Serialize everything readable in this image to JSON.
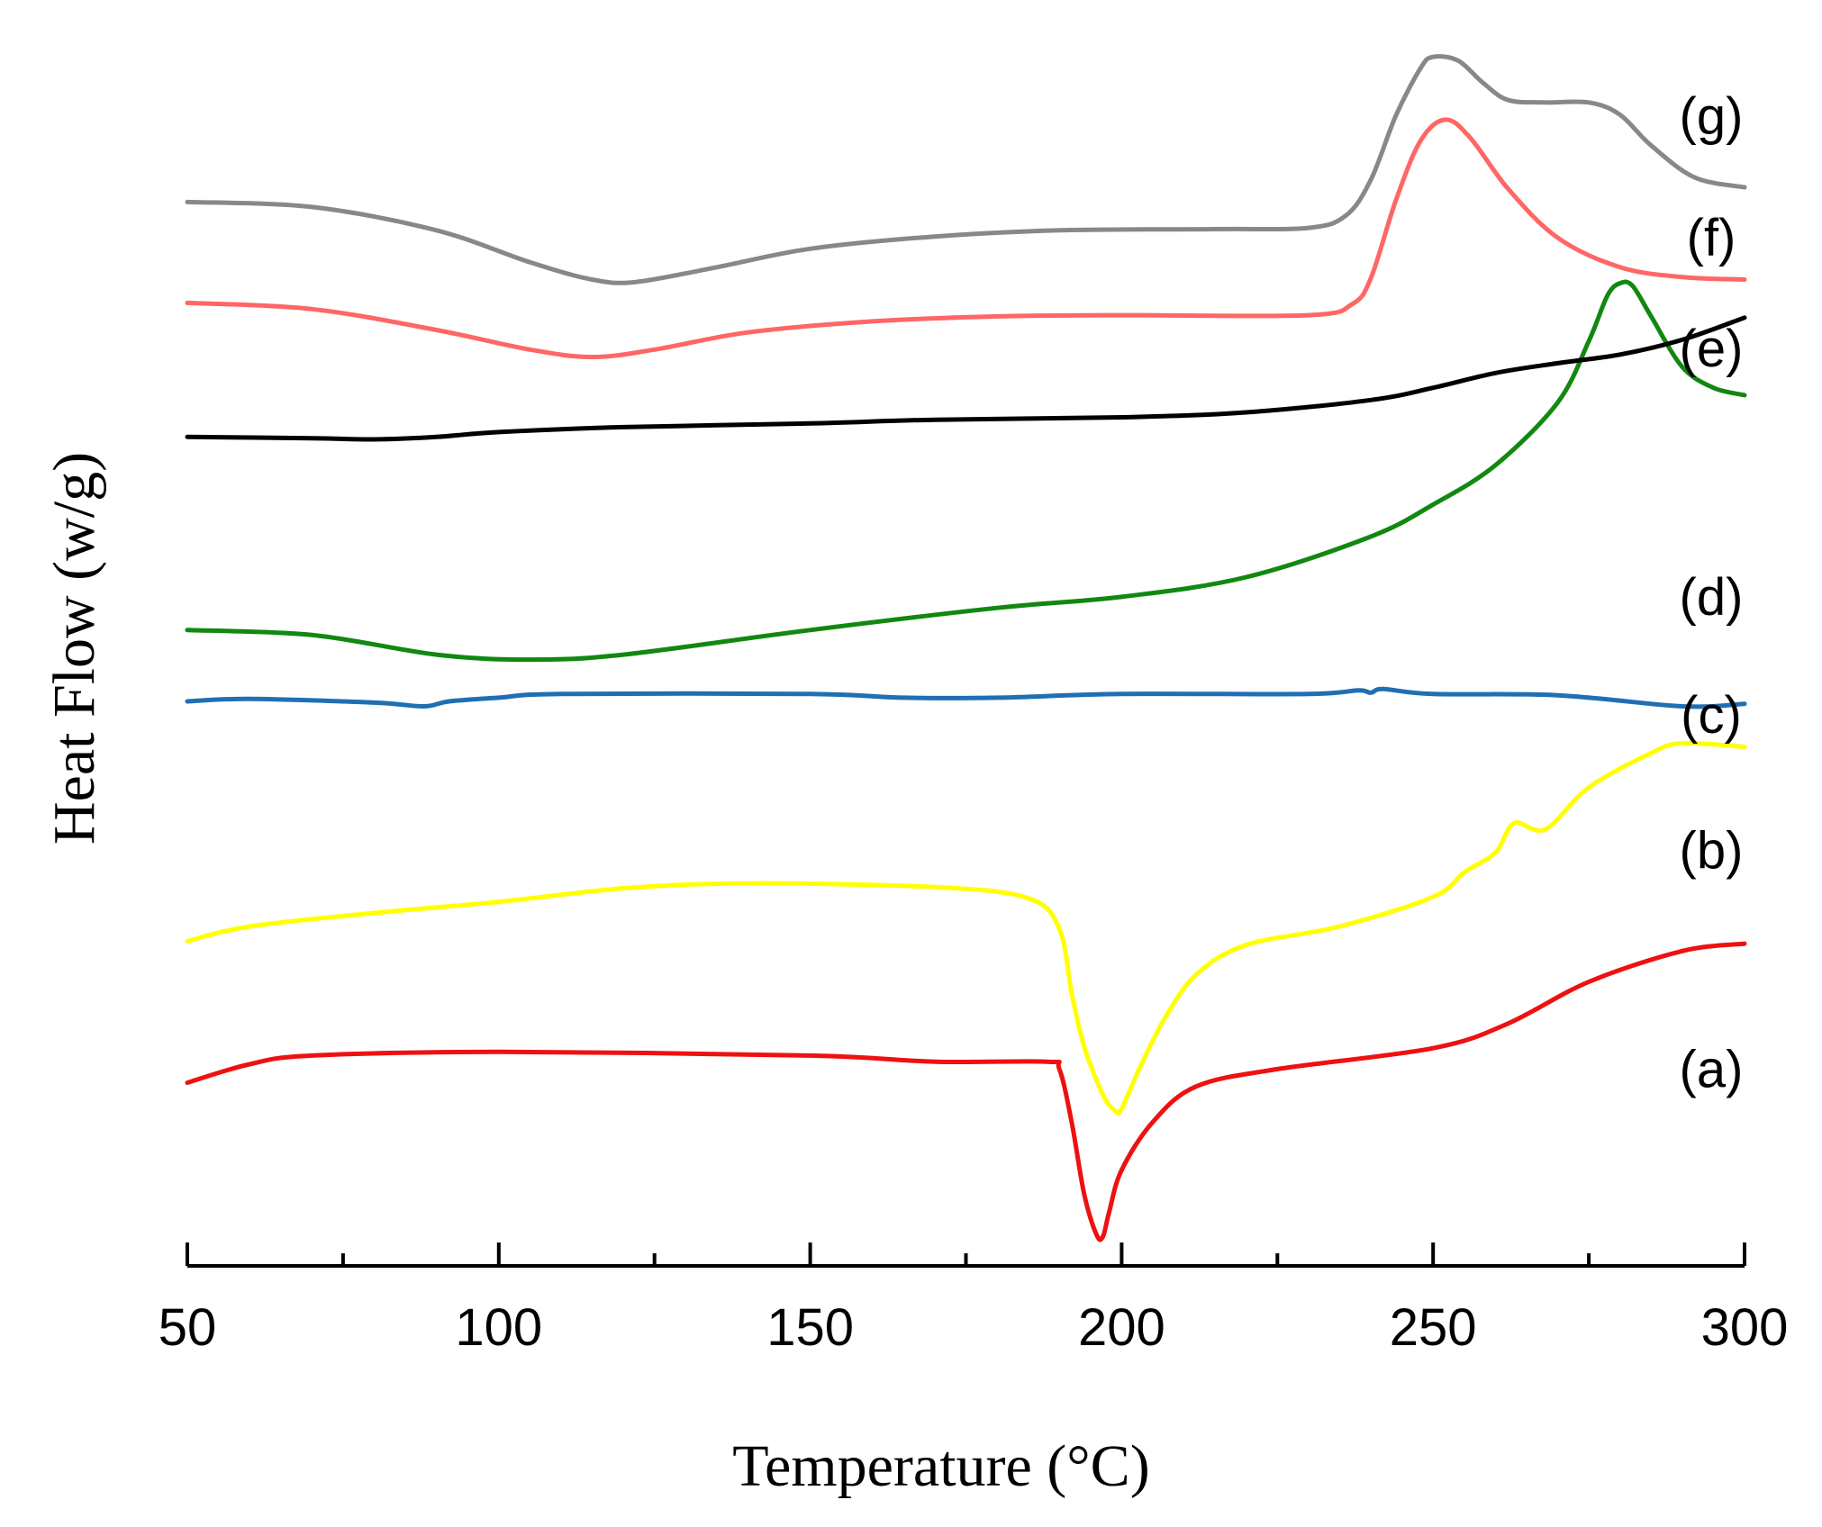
{
  "chart_data": {
    "type": "line",
    "title": "",
    "xlabel": "Temperature (°C)",
    "ylabel": "Heat Flow (w/g)",
    "xlim": [
      50,
      300
    ],
    "ylim": [
      0,
      100
    ],
    "x_ticks_major": [
      50,
      100,
      150,
      200,
      250,
      300
    ],
    "x_tick_labels": [
      "50",
      "100",
      "150",
      "200",
      "250",
      "300"
    ],
    "y_ticks_shown": false,
    "grid": false,
    "legend": "none",
    "note": "Stacked DSC curves; y values are relative (arbitrary) units as the y axis has no scale.",
    "series": [
      {
        "name": "(a)",
        "label": "(a)",
        "color": "#ee1111",
        "points": [
          [
            50,
            14.9
          ],
          [
            60,
            16.4
          ],
          [
            70,
            17.1
          ],
          [
            100,
            17.4
          ],
          [
            150,
            17.1
          ],
          [
            170,
            16.6
          ],
          [
            188,
            16.6
          ],
          [
            190,
            16.0
          ],
          [
            192,
            11.6
          ],
          [
            194,
            5.8
          ],
          [
            196,
            2.5
          ],
          [
            197,
            2.4
          ],
          [
            198,
            4.4
          ],
          [
            200,
            7.8
          ],
          [
            205,
            11.7
          ],
          [
            212,
            14.6
          ],
          [
            225,
            16.0
          ],
          [
            250,
            17.7
          ],
          [
            262,
            19.7
          ],
          [
            275,
            23.1
          ],
          [
            290,
            25.6
          ],
          [
            300,
            26.2
          ]
        ]
      },
      {
        "name": "(b)",
        "label": "(b)",
        "color": "#ffff00",
        "points": [
          [
            50,
            26.4
          ],
          [
            60,
            27.6
          ],
          [
            80,
            28.7
          ],
          [
            100,
            29.6
          ],
          [
            120,
            30.7
          ],
          [
            140,
            31.1
          ],
          [
            170,
            30.8
          ],
          [
            185,
            29.9
          ],
          [
            190,
            27.4
          ],
          [
            192,
            22.1
          ],
          [
            194,
            17.8
          ],
          [
            197,
            13.9
          ],
          [
            199,
            12.6
          ],
          [
            200,
            12.8
          ],
          [
            203,
            16.2
          ],
          [
            207,
            20.2
          ],
          [
            212,
            23.7
          ],
          [
            220,
            26.1
          ],
          [
            235,
            27.6
          ],
          [
            250,
            30.0
          ],
          [
            255,
            32.0
          ],
          [
            260,
            33.6
          ],
          [
            263,
            36.0
          ],
          [
            268,
            35.5
          ],
          [
            275,
            38.9
          ],
          [
            285,
            41.7
          ],
          [
            290,
            42.5
          ],
          [
            300,
            42.2
          ]
        ]
      },
      {
        "name": "(c)",
        "label": "(c)",
        "color": "#1f6fb3",
        "points": [
          [
            50,
            45.9
          ],
          [
            60,
            46.1
          ],
          [
            80,
            45.8
          ],
          [
            88,
            45.5
          ],
          [
            92,
            45.9
          ],
          [
            100,
            46.2
          ],
          [
            110,
            46.5
          ],
          [
            150,
            46.5
          ],
          [
            165,
            46.2
          ],
          [
            180,
            46.2
          ],
          [
            200,
            46.5
          ],
          [
            230,
            46.5
          ],
          [
            238,
            46.8
          ],
          [
            240,
            46.6
          ],
          [
            242,
            46.9
          ],
          [
            250,
            46.5
          ],
          [
            270,
            46.4
          ],
          [
            290,
            45.5
          ],
          [
            300,
            45.7
          ]
        ]
      },
      {
        "name": "(d)",
        "label": "(d)",
        "color": "#118811",
        "points": [
          [
            50,
            51.7
          ],
          [
            70,
            51.3
          ],
          [
            90,
            49.7
          ],
          [
            105,
            49.3
          ],
          [
            120,
            49.7
          ],
          [
            150,
            51.7
          ],
          [
            180,
            53.5
          ],
          [
            200,
            54.4
          ],
          [
            220,
            56.0
          ],
          [
            240,
            59.3
          ],
          [
            250,
            61.9
          ],
          [
            260,
            65.1
          ],
          [
            270,
            70.2
          ],
          [
            275,
            75.2
          ],
          [
            278,
            78.9
          ],
          [
            280,
            79.9
          ],
          [
            282,
            79.7
          ],
          [
            285,
            77.2
          ],
          [
            290,
            73.1
          ],
          [
            295,
            71.4
          ],
          [
            300,
            70.8
          ]
        ]
      },
      {
        "name": "(e)",
        "label": "(e)",
        "color": "#000000",
        "points": [
          [
            50,
            67.4
          ],
          [
            70,
            67.3
          ],
          [
            80,
            67.2
          ],
          [
            90,
            67.4
          ],
          [
            100,
            67.8
          ],
          [
            120,
            68.2
          ],
          [
            150,
            68.5
          ],
          [
            170,
            68.8
          ],
          [
            200,
            69.0
          ],
          [
            220,
            69.4
          ],
          [
            240,
            70.4
          ],
          [
            250,
            71.4
          ],
          [
            260,
            72.6
          ],
          [
            270,
            73.4
          ],
          [
            280,
            74.1
          ],
          [
            290,
            75.3
          ],
          [
            300,
            77.1
          ]
        ]
      },
      {
        "name": "(f)",
        "label": "(f)",
        "color": "#ff6666",
        "points": [
          [
            50,
            78.3
          ],
          [
            70,
            77.8
          ],
          [
            90,
            76.1
          ],
          [
            105,
            74.5
          ],
          [
            115,
            73.9
          ],
          [
            125,
            74.5
          ],
          [
            140,
            75.9
          ],
          [
            160,
            76.8
          ],
          [
            180,
            77.2
          ],
          [
            200,
            77.3
          ],
          [
            230,
            77.3
          ],
          [
            237,
            78.2
          ],
          [
            240,
            80.3
          ],
          [
            244,
            86.6
          ],
          [
            248,
            91.5
          ],
          [
            252,
            93.2
          ],
          [
            256,
            91.7
          ],
          [
            262,
            87.6
          ],
          [
            270,
            83.6
          ],
          [
            280,
            81.2
          ],
          [
            290,
            80.4
          ],
          [
            300,
            80.2
          ]
        ]
      },
      {
        "name": "(g)",
        "label": "(g)",
        "color": "#888888",
        "points": [
          [
            50,
            86.5
          ],
          [
            70,
            86.1
          ],
          [
            90,
            84.2
          ],
          [
            105,
            81.6
          ],
          [
            115,
            80.2
          ],
          [
            122,
            80.0
          ],
          [
            135,
            81.2
          ],
          [
            150,
            82.7
          ],
          [
            170,
            83.7
          ],
          [
            190,
            84.2
          ],
          [
            215,
            84.3
          ],
          [
            230,
            84.4
          ],
          [
            236,
            85.4
          ],
          [
            240,
            88.3
          ],
          [
            244,
            93.5
          ],
          [
            248,
            97.4
          ],
          [
            250,
            98.3
          ],
          [
            254,
            98.0
          ],
          [
            258,
            96.2
          ],
          [
            262,
            94.8
          ],
          [
            268,
            94.6
          ],
          [
            275,
            94.6
          ],
          [
            280,
            93.6
          ],
          [
            285,
            91.1
          ],
          [
            292,
            88.5
          ],
          [
            300,
            87.7
          ]
        ]
      }
    ]
  }
}
